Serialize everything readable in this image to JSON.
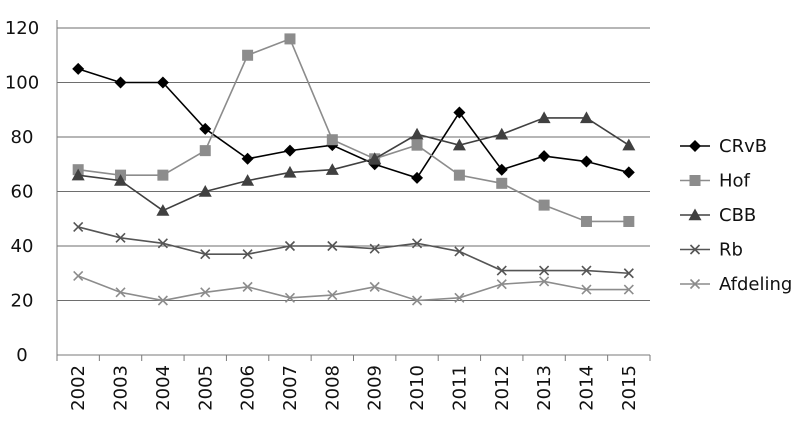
{
  "chart_data": {
    "type": "line",
    "title": "",
    "xlabel": "",
    "ylabel": "",
    "x": [
      "2002",
      "2003",
      "2004",
      "2005",
      "2006",
      "2007",
      "2008",
      "2009",
      "2010",
      "2011",
      "2012",
      "2013",
      "2014",
      "2015"
    ],
    "ylim": [
      0,
      120
    ],
    "yticks": [
      0,
      20,
      40,
      60,
      80,
      100,
      120
    ],
    "grid": "horizontal",
    "legend_position": "right",
    "series": [
      {
        "name": "CRvB",
        "marker": "diamond",
        "color": "#000000",
        "values": [
          105,
          100,
          100,
          83,
          72,
          75,
          77,
          70,
          65,
          89,
          68,
          73,
          71,
          67
        ]
      },
      {
        "name": "Hof",
        "marker": "square",
        "color": "#8c8c8c",
        "values": [
          68,
          66,
          66,
          75,
          110,
          116,
          79,
          72,
          77,
          66,
          63,
          55,
          49,
          49
        ]
      },
      {
        "name": "CBB",
        "marker": "triangle",
        "color": "#404040",
        "values": [
          66,
          64,
          53,
          60,
          64,
          67,
          68,
          72,
          81,
          77,
          81,
          87,
          87,
          77
        ]
      },
      {
        "name": "Rb",
        "marker": "x",
        "color": "#555555",
        "values": [
          47,
          43,
          41,
          37,
          37,
          40,
          40,
          39,
          41,
          38,
          31,
          31,
          31,
          30
        ]
      },
      {
        "name": "Afdeling",
        "marker": "x",
        "color": "#8c8c8c",
        "values": [
          29,
          23,
          20,
          23,
          25,
          21,
          22,
          25,
          20,
          21,
          26,
          27,
          24,
          24
        ]
      }
    ]
  }
}
